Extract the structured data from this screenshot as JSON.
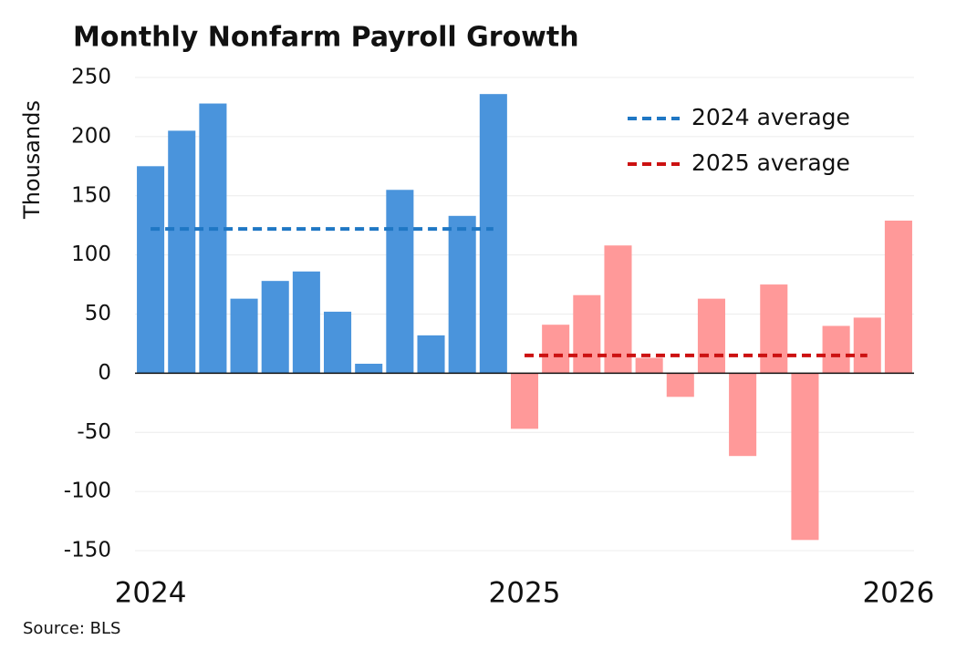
{
  "chart_data": {
    "type": "bar",
    "title": "Monthly Nonfarm Payroll Growth",
    "y_label": "Thousands",
    "source": "Source: BLS",
    "categories": [
      "2024",
      null,
      null,
      null,
      null,
      null,
      null,
      null,
      null,
      null,
      null,
      null,
      "2025",
      null,
      null,
      null,
      null,
      null,
      null,
      null,
      null,
      null,
      null,
      null,
      "2026"
    ],
    "series": [
      {
        "color": "#4a94dc",
        "values": [
          175,
          205,
          228,
          63,
          78,
          86,
          52,
          8,
          155,
          32,
          133,
          236,
          null,
          null,
          null,
          null,
          null,
          null,
          null,
          null,
          null,
          null,
          null,
          null,
          null
        ]
      },
      {
        "color": "#ff9999",
        "values": [
          null,
          null,
          null,
          null,
          null,
          null,
          null,
          null,
          null,
          null,
          null,
          null,
          -47,
          41,
          66,
          108,
          13,
          -20,
          63,
          -70,
          75,
          -141,
          40,
          47,
          129
        ]
      }
    ],
    "reference_lines": [
      {
        "name": "2024 average",
        "value": 122,
        "color": "#1f77c4",
        "start": 0,
        "end": 11
      },
      {
        "name": "2025 average",
        "value": 15,
        "color": "#cc1111",
        "start": 12,
        "end": 23
      }
    ],
    "ylim": [
      -150,
      250
    ],
    "yticks": [
      -150,
      -100,
      -50,
      0,
      50,
      100,
      150,
      200,
      250
    ],
    "grid": true
  }
}
